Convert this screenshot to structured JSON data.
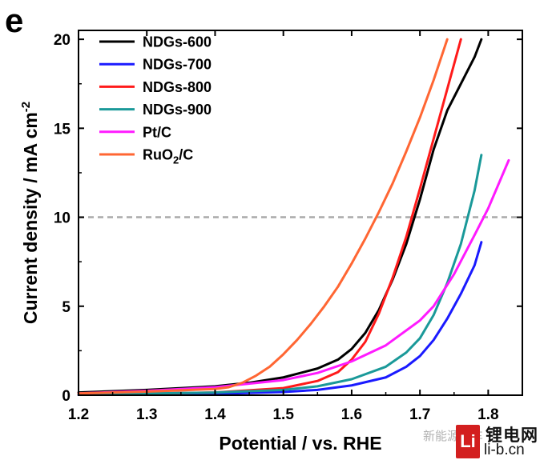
{
  "panel_label": "e",
  "watermark": {
    "faint_text": "新能源汽车",
    "logo_text": "Li",
    "site_name": "锂电网",
    "domain": "li-b.cn"
  },
  "chart_data": {
    "type": "line",
    "xlabel": "Potential / vs. RHE",
    "ylabel_main": "Current density / mA cm",
    "ylabel_sup": "-2",
    "xlim": [
      1.2,
      1.85
    ],
    "ylim": [
      0,
      20.5
    ],
    "xticks": [
      1.2,
      1.3,
      1.4,
      1.5,
      1.6,
      1.7,
      1.8
    ],
    "xtick_labels": [
      "1.2",
      "1.3",
      "1.4",
      "1.5",
      "1.6",
      "1.7",
      "1.8"
    ],
    "yticks": [
      0,
      5,
      10,
      15,
      20
    ],
    "ytick_labels": [
      "0",
      "5",
      "10",
      "15",
      "20"
    ],
    "reference_line": {
      "y": 10,
      "color": "#aaaaaa",
      "style": "dashed"
    },
    "legend_position": "top-left",
    "series": [
      {
        "name": "NDGs-600",
        "color": "#000000",
        "x": [
          1.2,
          1.3,
          1.4,
          1.45,
          1.5,
          1.55,
          1.58,
          1.6,
          1.62,
          1.64,
          1.66,
          1.68,
          1.7,
          1.72,
          1.74,
          1.76,
          1.78,
          1.79
        ],
        "y": [
          0.15,
          0.3,
          0.5,
          0.7,
          1.0,
          1.5,
          2.0,
          2.6,
          3.5,
          4.8,
          6.5,
          8.5,
          11.0,
          13.8,
          16.0,
          17.5,
          19.0,
          20.0
        ]
      },
      {
        "name": "NDGs-700",
        "color": "#1a1aff",
        "x": [
          1.2,
          1.4,
          1.5,
          1.55,
          1.6,
          1.65,
          1.68,
          1.7,
          1.72,
          1.74,
          1.76,
          1.78,
          1.79
        ],
        "y": [
          0.02,
          0.08,
          0.18,
          0.3,
          0.55,
          1.0,
          1.6,
          2.2,
          3.1,
          4.3,
          5.7,
          7.3,
          8.6
        ]
      },
      {
        "name": "NDGs-800",
        "color": "#ff1a1a",
        "x": [
          1.2,
          1.4,
          1.5,
          1.55,
          1.58,
          1.6,
          1.62,
          1.64,
          1.66,
          1.68,
          1.7,
          1.72,
          1.74,
          1.76
        ],
        "y": [
          0.05,
          0.15,
          0.4,
          0.8,
          1.3,
          2.0,
          3.0,
          4.6,
          6.6,
          8.9,
          11.6,
          14.4,
          17.2,
          20.0
        ]
      },
      {
        "name": "NDGs-900",
        "color": "#1a9999",
        "x": [
          1.2,
          1.4,
          1.5,
          1.55,
          1.6,
          1.65,
          1.68,
          1.7,
          1.72,
          1.74,
          1.76,
          1.78,
          1.79
        ],
        "y": [
          0.05,
          0.15,
          0.3,
          0.5,
          0.9,
          1.6,
          2.4,
          3.2,
          4.5,
          6.3,
          8.5,
          11.5,
          13.5
        ]
      },
      {
        "name": "Pt/C",
        "color": "#ff1aff",
        "x": [
          1.2,
          1.3,
          1.4,
          1.5,
          1.55,
          1.6,
          1.65,
          1.7,
          1.72,
          1.75,
          1.78,
          1.8,
          1.83
        ],
        "y": [
          0.1,
          0.25,
          0.45,
          0.85,
          1.25,
          1.9,
          2.8,
          4.2,
          5.0,
          6.8,
          9.0,
          10.5,
          13.2
        ]
      },
      {
        "name": "RuO2/C",
        "color": "#ff6633",
        "x": [
          1.2,
          1.3,
          1.4,
          1.42,
          1.44,
          1.46,
          1.48,
          1.5,
          1.52,
          1.54,
          1.56,
          1.58,
          1.6,
          1.62,
          1.64,
          1.66,
          1.68,
          1.7,
          1.72,
          1.74
        ],
        "y": [
          0.1,
          0.2,
          0.35,
          0.45,
          0.7,
          1.1,
          1.6,
          2.3,
          3.1,
          4.0,
          5.0,
          6.1,
          7.4,
          8.8,
          10.3,
          11.9,
          13.7,
          15.6,
          17.7,
          20.0
        ]
      }
    ],
    "legend": [
      {
        "text": "NDGs-600",
        "color": "#000000"
      },
      {
        "text": "NDGs-700",
        "color": "#1a1aff"
      },
      {
        "text": "NDGs-800",
        "color": "#ff1a1a"
      },
      {
        "text": "NDGs-900",
        "color": "#1a9999"
      },
      {
        "text": "Pt/C",
        "color": "#ff1aff"
      },
      {
        "text_main": "RuO",
        "text_sub": "2",
        "text_tail": "/C",
        "color": "#ff6633"
      }
    ]
  }
}
